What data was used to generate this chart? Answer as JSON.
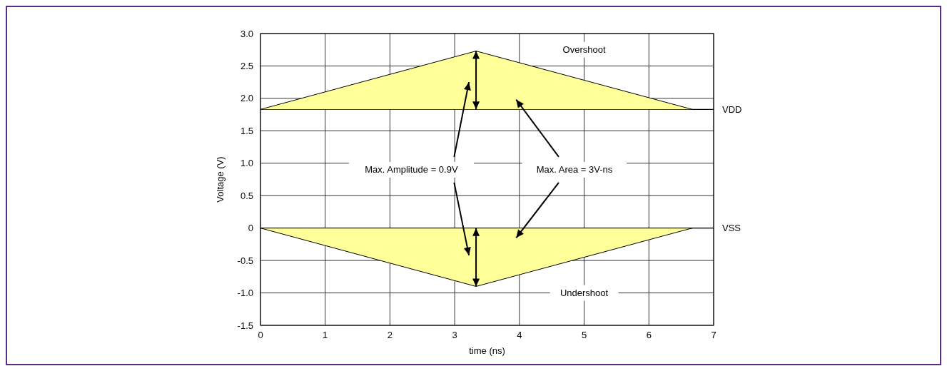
{
  "chart_data": {
    "type": "area",
    "xlabel": "time (ns)",
    "ylabel": "Voltage (V)",
    "xlim": [
      0,
      7
    ],
    "xticks": [
      0,
      1,
      2,
      3,
      4,
      5,
      6,
      7
    ],
    "ylim": [
      -1.5,
      3.0
    ],
    "yticks": [
      {
        "value": -1.5,
        "label": "-1.5"
      },
      {
        "value": -1.0,
        "label": "-1.0"
      },
      {
        "value": -0.5,
        "label": "-0.5"
      },
      {
        "value": 0,
        "label": "0"
      },
      {
        "value": 0.5,
        "label": "0.5"
      },
      {
        "value": 1.0,
        "label": "1.0"
      },
      {
        "value": 1.5,
        "label": "1.5"
      },
      {
        "value": 2.0,
        "label": "2.0"
      },
      {
        "value": 2.5,
        "label": "2.5"
      },
      {
        "value": 3.0,
        "label": "3.0"
      }
    ],
    "grid": true,
    "series": [
      {
        "type": "line",
        "color": "#000000",
        "x": [
          0,
          3.33,
          6.67
        ],
        "values": [
          1.83,
          2.73,
          1.83
        ],
        "lower": [
          1.83,
          1.83,
          1.83
        ],
        "upper": [
          1.83,
          2.73,
          1.83
        ]
      },
      {
        "color": "#ffff99",
        "x": [
          0,
          3.33,
          6.67
        ],
        "values": [
          0,
          -0.9,
          0
        ]
      }
    ],
    "ref_lines": [
      {
        "axis": "y",
        "value": 1.83,
        "label": "VDD",
        "color": "#000000"
      },
      {
        "axis": "y",
        "value": 0,
        "label": "VSS",
        "color": "#000000"
      }
    ],
    "annotations": [
      "Overshoot",
      "Undershoot",
      "Max. Amplitude = 0.9V",
      "Max. Area = 3V-ns"
    ]
  }
}
